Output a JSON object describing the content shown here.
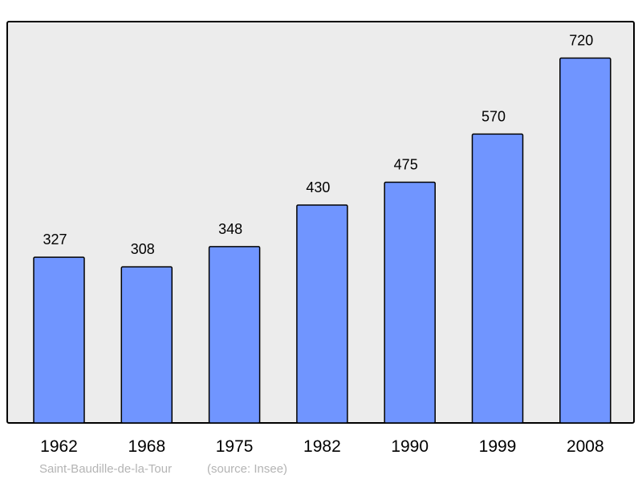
{
  "chart_data": {
    "type": "bar",
    "categories": [
      "1962",
      "1968",
      "1975",
      "1982",
      "1990",
      "1999",
      "2008"
    ],
    "values": [
      327,
      308,
      348,
      430,
      475,
      570,
      720
    ],
    "data_labels": [
      "327",
      "308",
      "348",
      "430",
      "475",
      "570",
      "720"
    ],
    "title": "",
    "xlabel": "",
    "ylabel": "",
    "ylim": [
      0,
      792
    ],
    "grid": false,
    "caption": "Saint-Baudille-de-la-Tour",
    "source": "(source: Insee)",
    "colors": {
      "bar": "#7095ff",
      "bar_stroke": "#000000",
      "plot_bg": "#ececec",
      "caption": "#b4b4b4"
    }
  }
}
